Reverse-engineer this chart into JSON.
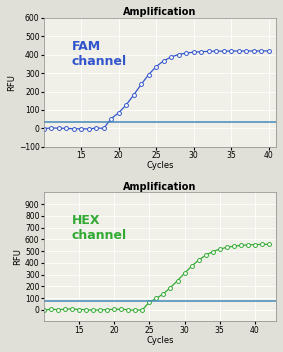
{
  "title": "Amplification",
  "fam_label": "FAM\nchannel",
  "hex_label": "HEX\nchannel",
  "xlabel": "Cycles",
  "ylabel": "RFU",
  "fam_color": "#3355cc",
  "hex_color": "#33aa33",
  "threshold_color": "#4488bb",
  "bg_color": "#f0f0e8",
  "fig_bg": "#e0e0d8",
  "fam_ylim": [
    -100,
    600
  ],
  "fam_yticks": [
    -100,
    0,
    100,
    200,
    300,
    400,
    500,
    600
  ],
  "hex_ylim": [
    -100,
    1000
  ],
  "hex_yticks": [
    0,
    100,
    200,
    300,
    400,
    500,
    600,
    700,
    800,
    900
  ],
  "fam_xlim": [
    10,
    41
  ],
  "hex_xlim": [
    10,
    43
  ],
  "fam_xticks": [
    15,
    20,
    25,
    30,
    35,
    40
  ],
  "hex_xticks": [
    15,
    20,
    25,
    30,
    35,
    40
  ],
  "fam_threshold": 35,
  "hex_threshold": 75
}
